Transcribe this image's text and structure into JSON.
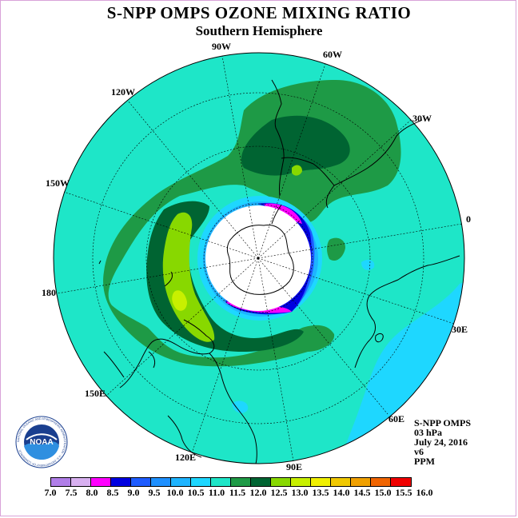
{
  "title": "S-NPP OMPS OZONE MIXING RATIO",
  "subtitle": "Southern Hemisphere",
  "longitude_labels": {
    "w90": "90W",
    "w60": "60W",
    "w30": "30W",
    "e0": "0",
    "e30": "30E",
    "e60": "60E",
    "e90": "90E",
    "e120": "120E",
    "e150": "150E",
    "d180": "180",
    "w150": "150W",
    "w120": "120W"
  },
  "info": {
    "instrument": "S-NPP OMPS",
    "level": "03 hPa",
    "date": "July 24, 2016",
    "version": "v6",
    "units": "PPM"
  },
  "logo": {
    "text": "NOAA",
    "ring_text": "NATIONAL OCEANIC AND ATMOSPHERIC ADMINISTRATION · U.S. DEPARTMENT OF COMMERCE"
  },
  "colorbar": {
    "ticks": [
      "7.0",
      "7.5",
      "8.0",
      "8.5",
      "9.0",
      "9.5",
      "10.0",
      "10.5",
      "11.0",
      "11.5",
      "12.0",
      "12.5",
      "13.0",
      "13.5",
      "14.0",
      "14.5",
      "15.0",
      "15.5",
      "16.0"
    ],
    "colors": [
      "#b07ee8",
      "#d8b0f0",
      "#ff00ff",
      "#0000e0",
      "#1e5cff",
      "#1e90ff",
      "#1eb4ff",
      "#1ed7ff",
      "#1ee6c8",
      "#1e9a46",
      "#006432",
      "#88d800",
      "#c8f000",
      "#f0f000",
      "#f0c800",
      "#f0a000",
      "#f06400",
      "#f00000",
      "#8c5028"
    ]
  },
  "chart_data": {
    "type": "heatmap",
    "title": "S-NPP OMPS OZONE MIXING RATIO",
    "subtitle": "Southern Hemisphere",
    "projection": "polar stereographic, South Pole centred",
    "pressure_level": "03 hPa",
    "date": "July 24, 2016",
    "version": "v6",
    "units": "PPM",
    "scale_range": [
      7.0,
      16.0
    ],
    "scale_step": 0.5,
    "field_summary": {
      "background_level_ppm": [
        11.0,
        11.5
      ],
      "high_band_ppm": [
        11.5,
        13.0
      ],
      "high_band_location": "mid-latitudes from 180 to 60W, peak 12.5-13.0 near 160E-170E",
      "low_ppm": [
        8.0,
        9.0
      ],
      "low_location": "polar vortex edge around Antarctica",
      "low_region_east_ppm": [
        10.0,
        10.5
      ],
      "low_region_east_location": "30E-60E low latitudes",
      "missing_data": "polar night over Antarctica (white)"
    }
  }
}
